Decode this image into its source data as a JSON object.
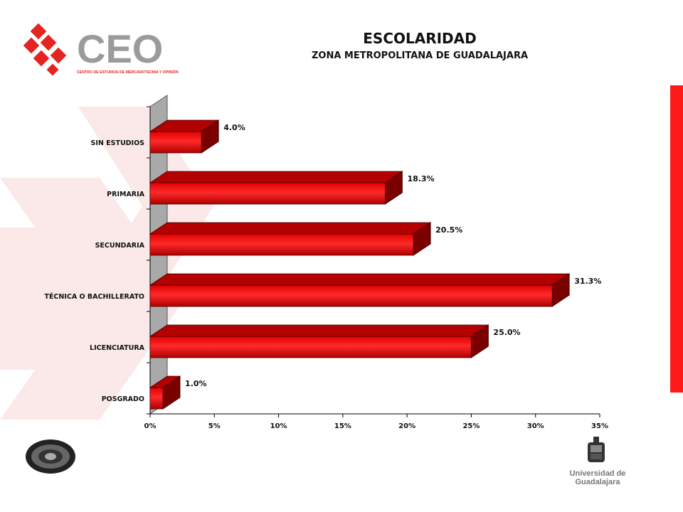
{
  "header": {
    "title": "ESCOLARIDAD",
    "subtitle": "ZONA METROPOLITANA DE GUADALAJARA"
  },
  "logo": {
    "name": "CEO",
    "tagline": "CENTRO DE ESTUDIOS DE MERCADOTECNIA Y OPINIÓN"
  },
  "footer": {
    "university": "Universidad de Guadalajara"
  },
  "colors": {
    "bar": "#dd0000",
    "bar_dark": "#7a0000",
    "bar_top": "#b30000",
    "wall": "#a9a9a9",
    "accent": "#ff1a1a"
  },
  "chart_data": {
    "type": "bar",
    "orientation": "horizontal",
    "categories": [
      "SIN ESTUDIOS",
      "PRIMARIA",
      "SECUNDARIA",
      "TÉCNICA O BACHILLERATO",
      "LICENCIATURA",
      "POSGRADO"
    ],
    "values": [
      4.0,
      18.3,
      20.5,
      31.3,
      25.0,
      1.0
    ],
    "data_labels": [
      "4.0%",
      "18.3%",
      "20.5%",
      "31.3%",
      "25.0%",
      "1.0%"
    ],
    "xlim": [
      0,
      35
    ],
    "x_ticks": [
      "0%",
      "5%",
      "10%",
      "15%",
      "20%",
      "25%",
      "30%",
      "35%"
    ],
    "grid": false,
    "legend": "none",
    "style": "3d"
  }
}
